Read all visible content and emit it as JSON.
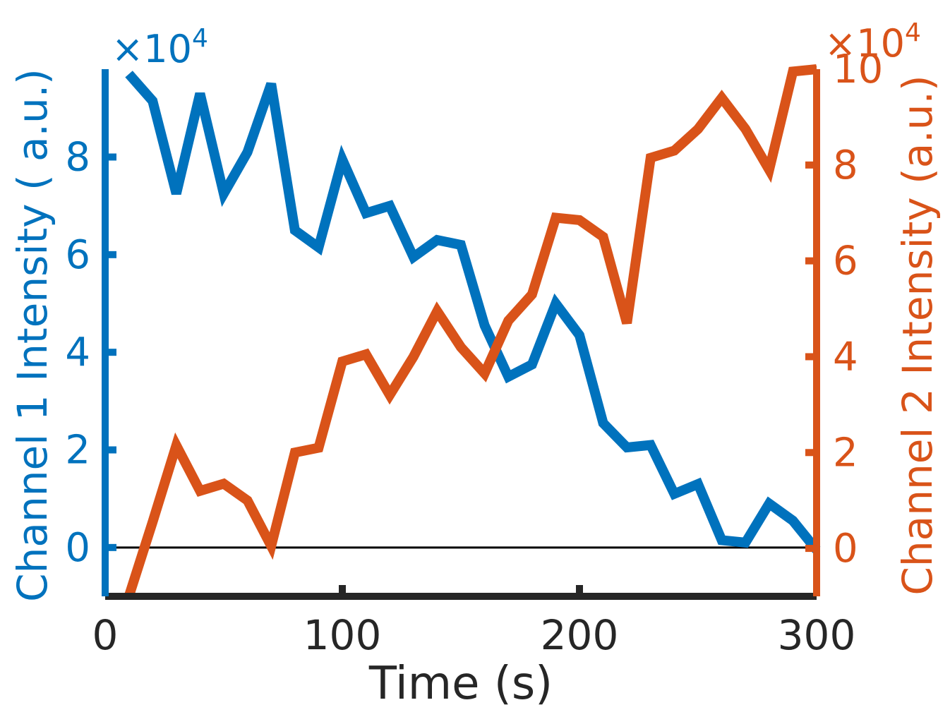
{
  "chart_data": {
    "type": "line",
    "xlabel": "Time  (s)",
    "ylabel_left": "Channel 1 Intensity ( a.u.)",
    "ylabel_right": "Channel 2 Intensity (a.u.)",
    "xlim": [
      0,
      300
    ],
    "ylim_left": [
      -10000,
      98000
    ],
    "ylim_right": [
      -10000,
      100000
    ],
    "xticks": [
      "0",
      "100",
      "200",
      "300"
    ],
    "yticks_left": [
      "0",
      "2",
      "4",
      "6",
      "8"
    ],
    "yticks_right": [
      "0",
      "2",
      "4",
      "6",
      "8",
      "10"
    ],
    "exponent_label_left": "×10",
    "exponent_label_right": "×10",
    "exponent_power": "4",
    "colors": {
      "channel1": "#0072BD",
      "channel2": "#D95319",
      "axis": "#262626"
    },
    "series": [
      {
        "key": "channel1",
        "x": [
          10,
          20,
          30,
          40,
          50,
          60,
          70,
          80,
          90,
          100,
          110,
          120,
          130,
          140,
          150,
          160,
          170,
          180,
          190,
          200,
          210,
          220,
          230,
          240,
          250,
          260,
          270,
          280,
          290,
          300
        ],
        "y": [
          97000,
          91500,
          72500,
          93000,
          72500,
          81000,
          95000,
          65000,
          61500,
          79500,
          68500,
          70000,
          59500,
          63000,
          62000,
          45500,
          35000,
          37500,
          50000,
          43500,
          25500,
          20500,
          21000,
          11000,
          13000,
          1500,
          1000,
          9000,
          5500,
          -500
        ]
      },
      {
        "key": "channel2",
        "x": [
          10,
          20,
          30,
          40,
          50,
          60,
          70,
          80,
          90,
          100,
          110,
          120,
          130,
          140,
          150,
          160,
          170,
          180,
          190,
          200,
          210,
          220,
          230,
          240,
          250,
          260,
          270,
          280,
          290,
          300
        ],
        "y": [
          -10000,
          5500,
          21500,
          12000,
          13500,
          10000,
          500,
          20000,
          21000,
          39000,
          40500,
          32000,
          40000,
          49500,
          42000,
          36500,
          47500,
          53000,
          69000,
          68500,
          65000,
          47000,
          81500,
          83000,
          87500,
          94000,
          87500,
          79000,
          99500,
          100000
        ]
      }
    ]
  }
}
